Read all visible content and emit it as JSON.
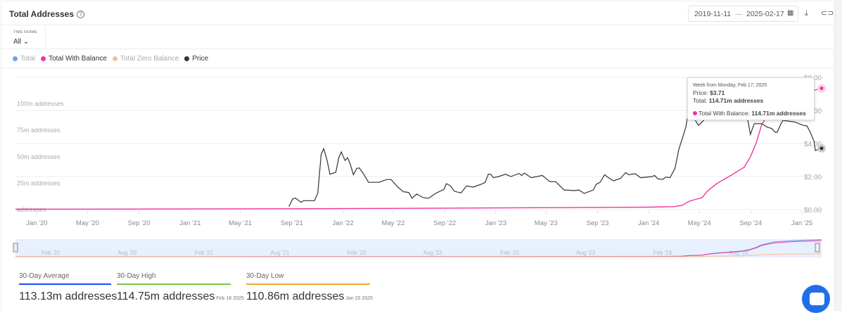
{
  "header": {
    "title": "Total Addresses",
    "start_date": "2019-11-11",
    "sep": "—",
    "end_date": "2025-02-17"
  },
  "time_frame": {
    "label": "TIME FRAME",
    "value": "All"
  },
  "legend": [
    {
      "label": "Total",
      "color": "#6e9ef5",
      "muted": true
    },
    {
      "label": "Total With Balance",
      "color": "#f0359f",
      "muted": false
    },
    {
      "label": "Total Zero Balance",
      "color": "#f8c08c",
      "muted": true
    },
    {
      "label": "Price",
      "color": "#333333",
      "muted": false
    }
  ],
  "tooltip": {
    "heading": "Week from Monday, Feb 17, 2025",
    "price_label": "Price:",
    "price": "$3.71",
    "total_label": "Total:",
    "total": "114.71m addresses",
    "twb_label": "Total With Balance:",
    "twb": "114.71m addresses"
  },
  "stats": [
    {
      "label": "30-Day Average",
      "value": "113.13m addresses",
      "date": "",
      "color": "#1a4dff"
    },
    {
      "label": "30-Day High",
      "value": "114.75m addresses",
      "date": "Feb 18 2025",
      "color": "#7ac943"
    },
    {
      "label": "30-Day Low",
      "value": "110.86m addresses",
      "date": "Jan 20 2025",
      "color": "#f5a623"
    }
  ],
  "chart_data": {
    "type": "line",
    "title": "Total Addresses",
    "x_range": [
      "2019-11-11",
      "2025-02-17"
    ],
    "x_ticks": [
      "Jan '20",
      "May '20",
      "Sep '20",
      "Jan '21",
      "May '21",
      "Sep '21",
      "Jan '22",
      "May '22",
      "Sep '22",
      "Jan '23",
      "May '23",
      "Sep '23",
      "Jan '24",
      "May '24",
      "Sep '24",
      "Jan '25"
    ],
    "x_tick_dates": [
      "2020-01-01",
      "2020-05-01",
      "2020-09-01",
      "2021-01-01",
      "2021-05-01",
      "2021-09-01",
      "2022-01-01",
      "2022-05-01",
      "2022-09-01",
      "2023-01-01",
      "2023-05-01",
      "2023-09-01",
      "2024-01-01",
      "2024-05-01",
      "2024-09-01",
      "2025-01-01"
    ],
    "left_axis": {
      "ticks": [
        "addresses",
        "25m addresses",
        "50m addresses",
        "75m addresses",
        "100m addresses"
      ],
      "values": [
        0,
        25,
        50,
        75,
        100
      ],
      "ylim": [
        0,
        125
      ]
    },
    "right_axis": {
      "ticks": [
        "$0.00",
        "$2.00",
        "$4.00",
        "$6.00",
        "$8.00"
      ],
      "values": [
        0,
        2,
        4,
        6,
        8
      ],
      "ylim": [
        0,
        8
      ]
    },
    "navigator_ticks": [
      "Feb '20",
      "Aug '20",
      "Feb '21",
      "Aug '21",
      "Feb '22",
      "Aug '22",
      "Feb '23",
      "Aug '23",
      "Feb '24",
      "Aug '24"
    ],
    "navigator_tick_dates": [
      "2020-02-01",
      "2020-08-01",
      "2021-02-01",
      "2021-08-01",
      "2022-02-01",
      "2022-08-01",
      "2023-02-01",
      "2023-08-01",
      "2024-02-01",
      "2024-08-01"
    ],
    "series": [
      {
        "name": "Total With Balance",
        "unit": "m addresses",
        "color": "#f0359f",
        "points": [
          [
            "2019-11-11",
            0.3
          ],
          [
            "2021-09-01",
            0.8
          ],
          [
            "2022-06-01",
            1.2
          ],
          [
            "2023-01-01",
            1.6
          ],
          [
            "2024-01-01",
            2.3
          ],
          [
            "2024-03-01",
            2.8
          ],
          [
            "2024-03-21",
            4
          ],
          [
            "2024-04-07",
            8
          ],
          [
            "2024-05-08",
            11.4
          ],
          [
            "2024-05-19",
            17
          ],
          [
            "2024-06-13",
            25
          ],
          [
            "2024-07-12",
            31.5
          ],
          [
            "2024-08-16",
            40
          ],
          [
            "2024-08-31",
            50
          ],
          [
            "2024-09-14",
            63
          ],
          [
            "2024-09-27",
            80.5
          ],
          [
            "2024-10-26",
            98
          ],
          [
            "2024-12-15",
            108
          ],
          [
            "2025-02-17",
            114.71
          ]
        ]
      },
      {
        "name": "Price",
        "unit": "$",
        "color": "#333333",
        "points": [
          [
            "2021-08-25",
            0.18
          ],
          [
            "2021-09-03",
            0.65
          ],
          [
            "2021-09-10",
            0.69
          ],
          [
            "2021-09-23",
            0.44
          ],
          [
            "2021-09-29",
            0.54
          ],
          [
            "2021-10-25",
            0.54
          ],
          [
            "2021-11-02",
            1.01
          ],
          [
            "2021-11-10",
            3.35
          ],
          [
            "2021-11-16",
            3.68
          ],
          [
            "2021-11-24",
            2.99
          ],
          [
            "2021-12-01",
            2.14
          ],
          [
            "2021-12-15",
            2.26
          ],
          [
            "2021-12-22",
            3.14
          ],
          [
            "2021-12-28",
            3.49
          ],
          [
            "2022-01-06",
            2.97
          ],
          [
            "2022-01-12",
            3.14
          ],
          [
            "2022-01-18",
            2.78
          ],
          [
            "2022-01-26",
            2.11
          ],
          [
            "2022-02-03",
            2.5
          ],
          [
            "2022-02-09",
            2.52
          ],
          [
            "2022-02-18",
            2.21
          ],
          [
            "2022-03-03",
            1.65
          ],
          [
            "2022-03-28",
            1.65
          ],
          [
            "2022-04-16",
            1.82
          ],
          [
            "2022-04-26",
            1.82
          ],
          [
            "2022-05-12",
            1.36
          ],
          [
            "2022-05-25",
            1.08
          ],
          [
            "2022-06-07",
            1.04
          ],
          [
            "2022-06-15",
            0.69
          ],
          [
            "2022-06-26",
            0.94
          ],
          [
            "2022-07-12",
            0.72
          ],
          [
            "2022-07-25",
            0.69
          ],
          [
            "2022-08-10",
            0.98
          ],
          [
            "2022-08-30",
            1.22
          ],
          [
            "2022-09-05",
            1.57
          ],
          [
            "2022-09-15",
            1.43
          ],
          [
            "2022-09-24",
            1.11
          ],
          [
            "2022-10-10",
            1.01
          ],
          [
            "2022-10-23",
            1.43
          ],
          [
            "2022-11-08",
            1.36
          ],
          [
            "2022-12-01",
            1.57
          ],
          [
            "2022-12-07",
            1.67
          ],
          [
            "2022-12-14",
            2.14
          ],
          [
            "2022-12-20",
            2.14
          ],
          [
            "2022-12-26",
            1.93
          ],
          [
            "2023-01-08",
            2.0
          ],
          [
            "2023-01-24",
            2.14
          ],
          [
            "2023-02-06",
            2.0
          ],
          [
            "2023-02-26",
            2.19
          ],
          [
            "2023-03-04",
            2.07
          ],
          [
            "2023-03-10",
            2.21
          ],
          [
            "2023-03-27",
            1.93
          ],
          [
            "2023-04-22",
            2.07
          ],
          [
            "2023-05-10",
            1.69
          ],
          [
            "2023-05-24",
            1.69
          ],
          [
            "2023-06-13",
            1.19
          ],
          [
            "2023-07-08",
            1.15
          ],
          [
            "2023-07-18",
            1.19
          ],
          [
            "2023-07-31",
            0.98
          ],
          [
            "2023-08-22",
            1.19
          ],
          [
            "2023-08-29",
            1.53
          ],
          [
            "2023-09-07",
            1.65
          ],
          [
            "2023-09-18",
            2.11
          ],
          [
            "2023-09-27",
            1.93
          ],
          [
            "2023-10-09",
            1.74
          ],
          [
            "2023-10-26",
            1.89
          ],
          [
            "2023-11-07",
            2.24
          ],
          [
            "2023-11-14",
            2.11
          ],
          [
            "2023-11-30",
            2.17
          ],
          [
            "2023-12-13",
            1.93
          ],
          [
            "2024-01-10",
            2.0
          ],
          [
            "2024-01-15",
            2.07
          ],
          [
            "2024-01-23",
            1.86
          ],
          [
            "2024-02-04",
            1.83
          ],
          [
            "2024-02-11",
            1.97
          ],
          [
            "2024-02-21",
            1.93
          ],
          [
            "2024-03-04",
            2.5
          ],
          [
            "2024-03-13",
            3.64
          ],
          [
            "2024-03-20",
            4.2
          ],
          [
            "2024-03-30",
            5.0
          ],
          [
            "2024-04-02",
            5.5
          ],
          [
            "2024-04-19",
            5.5
          ],
          [
            "2024-04-29",
            5.1
          ],
          [
            "2024-05-28",
            5.8
          ],
          [
            "2024-07-17",
            6.0
          ],
          [
            "2024-08-25",
            5.4
          ],
          [
            "2024-08-31",
            4.55
          ],
          [
            "2024-09-09",
            5.2
          ],
          [
            "2024-09-27",
            5.2
          ],
          [
            "2024-10-09",
            5.0
          ],
          [
            "2024-10-21",
            4.9
          ],
          [
            "2024-10-29",
            4.68
          ],
          [
            "2024-11-03",
            4.68
          ],
          [
            "2024-11-12",
            5.2
          ],
          [
            "2024-11-17",
            5.4
          ],
          [
            "2024-12-15",
            5.3
          ],
          [
            "2025-01-04",
            5.1
          ],
          [
            "2025-01-13",
            5.06
          ],
          [
            "2025-01-21",
            4.68
          ],
          [
            "2025-01-30",
            4.13
          ],
          [
            "2025-02-02",
            3.57
          ],
          [
            "2025-02-17",
            3.71
          ]
        ]
      }
    ]
  }
}
